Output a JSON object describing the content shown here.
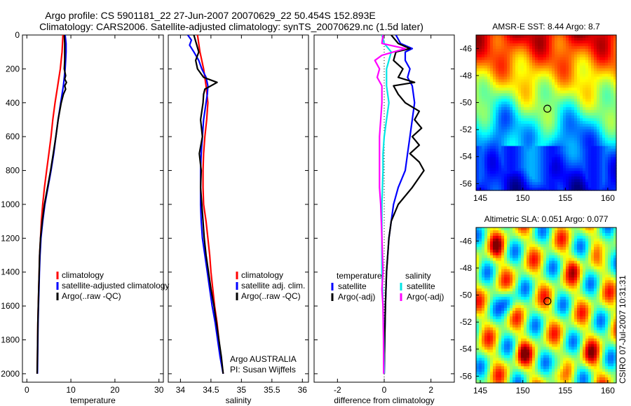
{
  "header": {
    "line1": "Argo profile: CS 5901181_22 27-Jun-2007 20070629_22 50.454S 152.893E",
    "line2": "Climatology: CARS2006. Satellite-adjusted climatology: synTS_20070629.nc (1.5d later)"
  },
  "credit": "CSIRO 07-Jul-2007 10:31:31",
  "colors": {
    "climatology": "#ff0000",
    "satellite": "#0000ff",
    "argo": "#000000",
    "sal_satellite": "#00e5e5",
    "sal_argo": "#ff00ff"
  },
  "chart_data": [
    {
      "id": "temperature",
      "type": "line",
      "xlabel": "temperature",
      "ylabel": "",
      "xlim": [
        -1,
        31
      ],
      "ylim": [
        2050,
        0
      ],
      "xticks": [
        0,
        10,
        20,
        30
      ],
      "yticks": [
        0,
        200,
        400,
        600,
        800,
        1000,
        1200,
        1400,
        1600,
        1800,
        2000
      ],
      "legend": {
        "position": "bottom-right",
        "items": [
          {
            "label": "climatology",
            "key": "climatology"
          },
          {
            "label": "satellite-adjusted climatology",
            "key": "satellite"
          },
          {
            "label": "Argo(..raw -QC)",
            "key": "argo"
          }
        ]
      },
      "series": [
        {
          "key": "climatology",
          "y": [
            0,
            100,
            200,
            300,
            400,
            500,
            600,
            700,
            800,
            900,
            1000,
            1100,
            1200,
            1300,
            1400,
            1500,
            1600,
            1700,
            1800,
            1900,
            2000
          ],
          "values": [
            8.2,
            8.0,
            7.6,
            7.0,
            6.4,
            5.9,
            5.5,
            5.0,
            4.5,
            4.0,
            3.6,
            3.3,
            3.1,
            2.9,
            2.8,
            2.7,
            2.6,
            2.5,
            2.45,
            2.4,
            2.35
          ]
        },
        {
          "key": "satellite",
          "y": [
            0,
            50,
            100,
            150,
            200,
            250,
            300,
            350,
            400,
            500,
            600,
            700,
            800,
            900,
            1000,
            1100,
            1200,
            1300,
            1400,
            1500,
            1600,
            1700,
            1800,
            1900,
            2000
          ],
          "values": [
            8.7,
            8.9,
            8.9,
            8.8,
            8.7,
            8.5,
            8.3,
            8.0,
            7.7,
            7.1,
            6.6,
            6.1,
            5.5,
            4.8,
            4.1,
            3.6,
            3.2,
            3.0,
            2.85,
            2.75,
            2.65,
            2.55,
            2.5,
            2.45,
            2.4
          ]
        },
        {
          "key": "argo",
          "y": [
            0,
            50,
            100,
            150,
            200,
            240,
            260,
            280,
            300,
            320,
            350,
            400,
            500,
            600,
            700,
            800,
            900,
            1000,
            1100,
            1200,
            1300,
            1400,
            1500,
            1600,
            1700,
            1800,
            1900,
            2000
          ],
          "values": [
            8.5,
            8.6,
            8.6,
            8.6,
            8.5,
            8.8,
            8.6,
            9.0,
            8.6,
            8.8,
            8.3,
            7.8,
            7.1,
            6.6,
            6.0,
            5.4,
            4.7,
            4.0,
            3.5,
            3.1,
            2.9,
            2.8,
            2.7,
            2.6,
            2.5,
            2.45,
            2.4,
            2.35
          ]
        }
      ]
    },
    {
      "id": "salinity",
      "type": "line",
      "xlabel": "salinity",
      "ylabel": "",
      "xlim": [
        33.8,
        36.1
      ],
      "ylim": [
        2050,
        0
      ],
      "xticks": [
        34,
        34.5,
        35,
        35.5,
        36
      ],
      "legend": {
        "position": "bottom-right",
        "items": [
          {
            "label": "climatology",
            "key": "climatology"
          },
          {
            "label": "satellite adj. clim.",
            "key": "satellite"
          },
          {
            "label": "Argo(..raw -QC)",
            "key": "argo"
          }
        ]
      },
      "annotation": [
        "Argo AUSTRALIA",
        "PI: Susan Wijffels"
      ],
      "series": [
        {
          "key": "climatology",
          "y": [
            0,
            100,
            200,
            300,
            400,
            500,
            600,
            700,
            800,
            900,
            1000,
            1100,
            1200,
            1300,
            1400,
            1500,
            1600,
            1700,
            1800,
            1900,
            2000
          ],
          "values": [
            34.28,
            34.32,
            34.38,
            34.42,
            34.45,
            34.43,
            34.4,
            34.38,
            34.37,
            34.37,
            34.38,
            34.42,
            34.45,
            34.48,
            34.5,
            34.53,
            34.56,
            34.6,
            34.63,
            34.66,
            34.7
          ]
        },
        {
          "key": "satellite",
          "y": [
            0,
            30,
            60,
            100,
            150,
            200,
            250,
            300,
            350,
            400,
            500,
            600,
            700,
            800,
            900,
            1000,
            1100,
            1200,
            1300,
            1400,
            1500,
            1600,
            1700,
            1800,
            1900,
            2000
          ],
          "values": [
            34.12,
            34.18,
            34.15,
            34.22,
            34.3,
            34.35,
            34.42,
            34.45,
            34.44,
            34.42,
            34.38,
            34.36,
            34.34,
            34.33,
            34.33,
            34.33,
            34.34,
            34.36,
            34.4,
            34.44,
            34.48,
            34.52,
            34.57,
            34.61,
            34.65,
            34.7
          ]
        },
        {
          "key": "argo",
          "y": [
            0,
            50,
            100,
            150,
            200,
            250,
            280,
            300,
            320,
            350,
            400,
            500,
            600,
            700,
            800,
            900,
            1000,
            1100,
            1200,
            1300,
            1400,
            1500,
            1600,
            1700,
            1800,
            1900,
            2000
          ],
          "values": [
            34.22,
            34.26,
            34.3,
            34.25,
            34.28,
            34.38,
            34.6,
            34.5,
            34.4,
            34.38,
            34.37,
            34.33,
            34.36,
            34.31,
            34.34,
            34.33,
            34.35,
            34.37,
            34.39,
            34.42,
            34.46,
            34.5,
            34.55,
            34.59,
            34.63,
            34.67,
            34.7
          ]
        }
      ]
    },
    {
      "id": "difference",
      "type": "line",
      "xlabel": "difference from climatology",
      "ylabel": "",
      "xlim": [
        -3,
        3
      ],
      "ylim": [
        2050,
        0
      ],
      "xticks": [
        -2,
        0,
        2
      ],
      "legend": {
        "position": "bottom-center",
        "groups": [
          {
            "title": "temperature",
            "items": [
              {
                "label": "satellite",
                "key": "satellite"
              },
              {
                "label": "Argo(-adj)",
                "key": "argo"
              }
            ]
          },
          {
            "title": "salinity",
            "items": [
              {
                "label": "satellite",
                "key": "sal_satellite"
              },
              {
                "label": "Argo(-adj)",
                "key": "sal_argo"
              }
            ]
          }
        ]
      },
      "series": [
        {
          "key": "satellite",
          "y": [
            0,
            50,
            80,
            100,
            150,
            200,
            250,
            300,
            400,
            500,
            600,
            700,
            800,
            900,
            1000,
            1200,
            1400,
            1600,
            1800,
            2000
          ],
          "values": [
            0.5,
            0.7,
            1.2,
            0.9,
            0.9,
            1.1,
            1.0,
            1.2,
            1.3,
            1.2,
            1.1,
            1.0,
            0.9,
            0.6,
            0.4,
            0.2,
            0.1,
            0.05,
            0.02,
            0.0
          ]
        },
        {
          "key": "argo",
          "y": [
            0,
            50,
            80,
            100,
            150,
            200,
            250,
            280,
            300,
            350,
            400,
            450,
            500,
            550,
            600,
            650,
            700,
            750,
            800,
            900,
            1000,
            1100,
            1200,
            1400,
            1600,
            1800,
            2000
          ],
          "values": [
            0.3,
            0.6,
            1.1,
            0.5,
            0.4,
            0.8,
            0.6,
            1.3,
            0.4,
            0.6,
            0.9,
            1.5,
            1.3,
            1.6,
            1.2,
            1.5,
            1.1,
            1.5,
            1.7,
            1.2,
            0.6,
            0.3,
            0.2,
            0.1,
            0.05,
            0.02,
            0.0
          ]
        },
        {
          "key": "sal_satellite",
          "y": [
            0,
            50,
            100,
            150,
            200,
            300,
            400,
            500,
            600,
            700,
            800,
            1000,
            1200,
            1400,
            1600,
            1800,
            2000
          ],
          "values": [
            -0.1,
            0.0,
            0.3,
            0.2,
            0.1,
            0.1,
            0.2,
            0.1,
            0.0,
            -0.05,
            -0.05,
            -0.1,
            -0.1,
            -0.1,
            -0.05,
            -0.02,
            0.0
          ]
        },
        {
          "key": "sal_argo",
          "y": [
            0,
            50,
            80,
            120,
            150,
            200,
            250,
            300,
            400,
            500,
            600,
            700,
            800,
            900,
            1000,
            1200,
            1400,
            1500,
            1600,
            1800,
            2000
          ],
          "values": [
            -0.05,
            -0.1,
            0.9,
            -0.1,
            -0.4,
            -0.2,
            -0.3,
            -0.1,
            -0.1,
            -0.15,
            -0.2,
            -0.2,
            -0.2,
            -0.2,
            -0.15,
            -0.1,
            -0.05,
            -0.1,
            -0.05,
            -0.03,
            -0.02
          ]
        }
      ]
    },
    {
      "id": "sst_map",
      "type": "heatmap",
      "title": "AMSR-E SST: 8.44 Argo: 8.7",
      "xlim": [
        144.5,
        161
      ],
      "ylim": [
        -56.5,
        -45
      ],
      "xticks": [
        145,
        150,
        155,
        160
      ],
      "yticks": [
        -46,
        -48,
        -50,
        -52,
        -54,
        -56
      ],
      "colormap": "jet",
      "marker": {
        "lon": 152.893,
        "lat": -50.454
      }
    },
    {
      "id": "sla_map",
      "type": "heatmap",
      "title": "Altimetric SLA: 0.051 Argo: 0.077",
      "xlim": [
        144.5,
        161
      ],
      "ylim": [
        -56.5,
        -45
      ],
      "xticks": [
        145,
        150,
        155,
        160
      ],
      "yticks": [
        -46,
        -48,
        -50,
        -52,
        -54,
        -56
      ],
      "colormap": "jet",
      "marker": {
        "lon": 152.893,
        "lat": -50.454
      }
    }
  ]
}
